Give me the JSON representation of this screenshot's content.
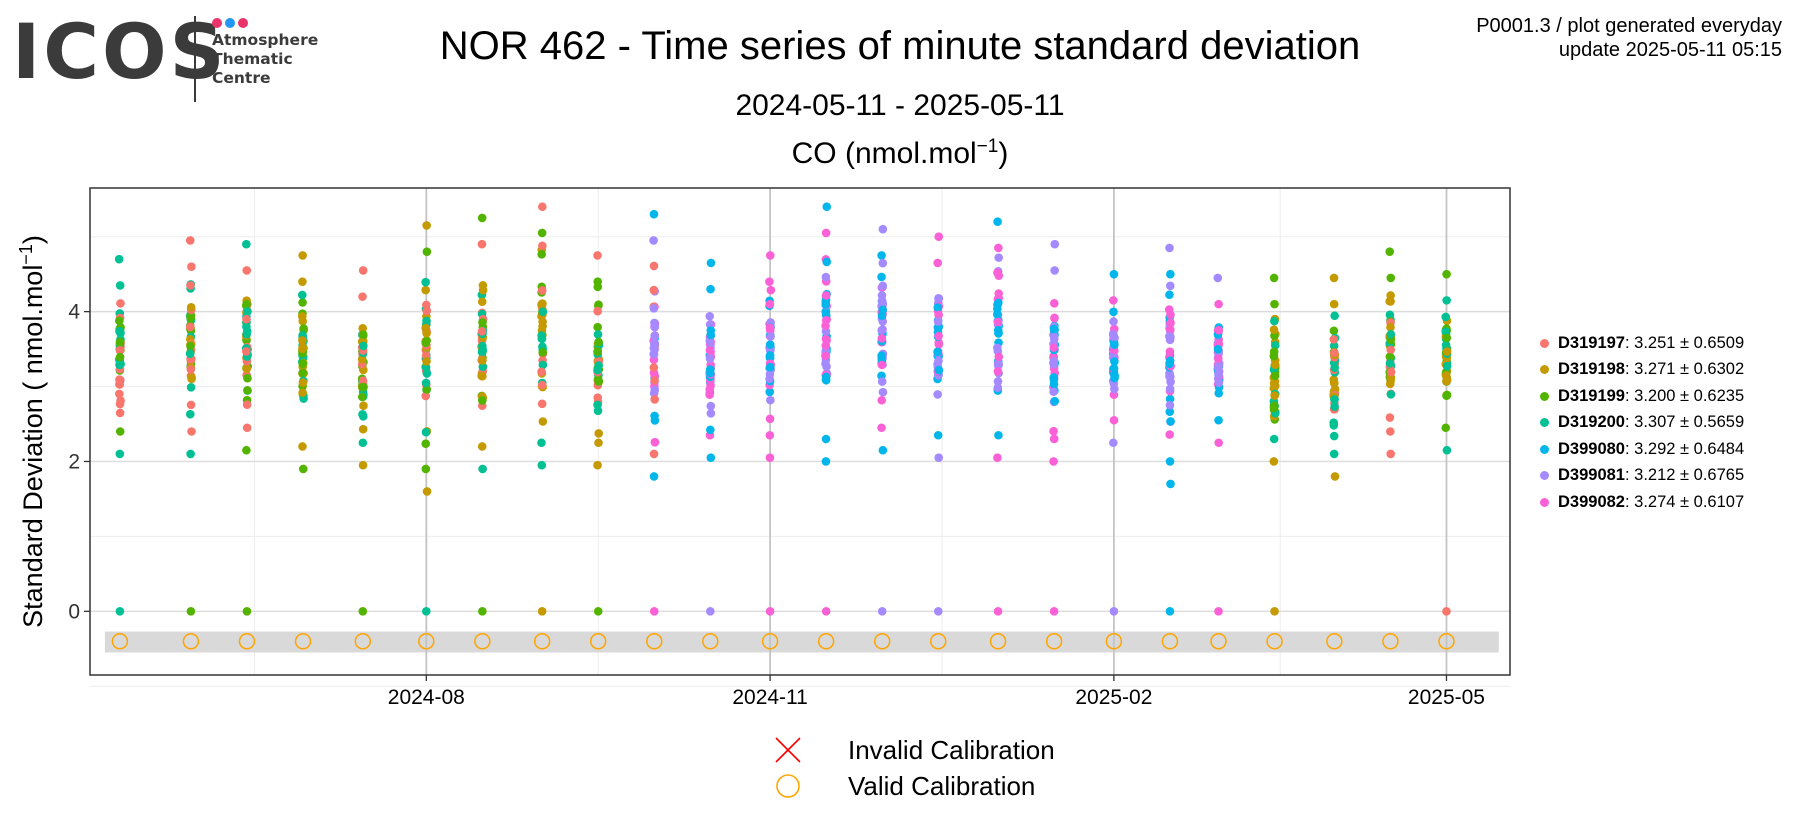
{
  "logo": {
    "word": "ICOS",
    "line1": "Atmosphere",
    "line2": "Thematic",
    "line3": "Centre",
    "dot_colors": [
      "#e8336b",
      "#2196f3",
      "#e8336b"
    ]
  },
  "header": {
    "title": "NOR 462 - Time series of minute standard deviation",
    "date_range": "2024-05-11 - 2025-05-11",
    "species": "CO (nmol.mol",
    "species_exp": "−1",
    "species_close": ")",
    "plot_id": "P0001.3 / plot generated everyday",
    "update": "update  2025-05-11 05:15"
  },
  "chart_data": {
    "type": "scatter",
    "title": "CO (nmol.mol−1)",
    "ylabel": "Standard Deviation ( nmol.mol−1)",
    "xlabel": "",
    "x_ticks": [
      "2024-08",
      "2024-11",
      "2025-02",
      "2025-05"
    ],
    "x_tick_dates": [
      "2024-08-01",
      "2024-11-01",
      "2025-02-01",
      "2025-05-01"
    ],
    "xlim": [
      "2024-05-03",
      "2025-05-18"
    ],
    "y_ticks": [
      0,
      2,
      4
    ],
    "ylim": [
      -0.85,
      5.65
    ],
    "grid": true,
    "legend_position": "right",
    "calibration_dates": [
      "2024-05-11",
      "2024-05-30",
      "2024-06-14",
      "2024-06-29",
      "2024-07-15",
      "2024-08-01",
      "2024-08-16",
      "2024-09-01",
      "2024-09-16",
      "2024-10-01",
      "2024-10-16",
      "2024-11-01",
      "2024-11-16",
      "2024-12-01",
      "2024-12-16",
      "2025-01-01",
      "2025-01-16",
      "2025-02-01",
      "2025-02-16",
      "2025-03-01",
      "2025-03-16",
      "2025-04-01",
      "2025-04-16",
      "2025-05-01"
    ],
    "calibration_value": -0.4,
    "calibration_band": [
      -0.55,
      -0.27
    ],
    "calibration_legend": [
      {
        "label": "Invalid Calibration",
        "symbol": "cross",
        "color": "#ff0000"
      },
      {
        "label": "Valid Calibration",
        "symbol": "circle",
        "color": "#ffa500"
      }
    ],
    "series": [
      {
        "name": "D319197",
        "mean": "3.251",
        "sd": "0.6509",
        "color": "#F8766D"
      },
      {
        "name": "D319198",
        "mean": "3.271",
        "sd": "0.6302",
        "color": "#C49A00"
      },
      {
        "name": "D319199",
        "mean": "3.200",
        "sd": "0.6235",
        "color": "#53B400"
      },
      {
        "name": "D319200",
        "mean": "3.307",
        "sd": "0.5659",
        "color": "#00C094"
      },
      {
        "name": "D399080",
        "mean": "3.292",
        "sd": "0.6484",
        "color": "#00B6EB"
      },
      {
        "name": "D399081",
        "mean": "3.212",
        "sd": "0.6765",
        "color": "#A58AFF"
      },
      {
        "name": "D399082",
        "mean": "3.274",
        "sd": "0.6107",
        "color": "#FB61D7"
      }
    ],
    "clusters": [
      {
        "date": "2024-05-11",
        "series": [
          0,
          2,
          3
        ],
        "min": 2.1,
        "max": 4.7,
        "zero": 3
      },
      {
        "date": "2024-05-30",
        "series": [
          0,
          1,
          2,
          3
        ],
        "min": 2.1,
        "max": 4.95,
        "zero": 2
      },
      {
        "date": "2024-06-14",
        "series": [
          0,
          1,
          2,
          3
        ],
        "min": 2.15,
        "max": 4.9,
        "zero": 2
      },
      {
        "date": "2024-06-29",
        "series": [
          1,
          2,
          3
        ],
        "min": 1.9,
        "max": 4.75,
        "zero": null
      },
      {
        "date": "2024-07-15",
        "series": [
          0,
          1,
          2,
          3
        ],
        "min": 1.95,
        "max": 4.55,
        "zero": 2
      },
      {
        "date": "2024-08-01",
        "series": [
          0,
          1,
          2,
          3
        ],
        "min": 1.6,
        "max": 5.15,
        "zero": 3
      },
      {
        "date": "2024-08-16",
        "series": [
          0,
          1,
          2,
          3
        ],
        "min": 1.9,
        "max": 5.25,
        "zero": 2
      },
      {
        "date": "2024-09-01",
        "series": [
          0,
          1,
          2,
          3
        ],
        "min": 1.95,
        "max": 5.4,
        "zero": 1
      },
      {
        "date": "2024-09-16",
        "series": [
          0,
          1,
          2,
          3
        ],
        "min": 1.95,
        "max": 4.75,
        "zero": 2
      },
      {
        "date": "2024-10-01",
        "series": [
          0,
          4,
          5,
          6
        ],
        "min": 1.8,
        "max": 5.3,
        "zero": 6
      },
      {
        "date": "2024-10-16",
        "series": [
          4,
          5,
          6
        ],
        "min": 2.05,
        "max": 4.65,
        "zero": 5
      },
      {
        "date": "2024-11-01",
        "series": [
          4,
          5,
          6
        ],
        "min": 2.05,
        "max": 4.75,
        "zero": 6
      },
      {
        "date": "2024-11-16",
        "series": [
          4,
          5,
          6
        ],
        "min": 2.0,
        "max": 5.4,
        "zero": 6
      },
      {
        "date": "2024-12-01",
        "series": [
          4,
          5,
          6
        ],
        "min": 2.15,
        "max": 5.1,
        "zero": 5
      },
      {
        "date": "2024-12-16",
        "series": [
          4,
          5,
          6
        ],
        "min": 2.05,
        "max": 5.0,
        "zero": 5
      },
      {
        "date": "2025-01-01",
        "series": [
          4,
          5,
          6
        ],
        "min": 2.05,
        "max": 5.2,
        "zero": 6
      },
      {
        "date": "2025-01-16",
        "series": [
          4,
          5,
          6
        ],
        "min": 2.0,
        "max": 4.9,
        "zero": 6
      },
      {
        "date": "2025-02-01",
        "series": [
          4,
          5,
          6
        ],
        "min": 2.25,
        "max": 4.5,
        "zero": 5
      },
      {
        "date": "2025-02-16",
        "series": [
          4,
          5,
          6
        ],
        "min": 1.7,
        "max": 4.85,
        "zero": 4
      },
      {
        "date": "2025-03-01",
        "series": [
          4,
          5,
          6
        ],
        "min": 2.25,
        "max": 4.45,
        "zero": 6
      },
      {
        "date": "2025-03-16",
        "series": [
          1,
          2,
          3
        ],
        "min": 2.0,
        "max": 4.45,
        "zero": 1
      },
      {
        "date": "2025-04-01",
        "series": [
          0,
          1,
          2,
          3
        ],
        "min": 1.8,
        "max": 4.45,
        "zero": null
      },
      {
        "date": "2025-04-16",
        "series": [
          0,
          1,
          2,
          3
        ],
        "min": 2.1,
        "max": 4.8,
        "zero": null
      },
      {
        "date": "2025-05-01",
        "series": [
          1,
          2,
          3
        ],
        "min": 2.15,
        "max": 4.5,
        "zero": 0
      }
    ]
  }
}
